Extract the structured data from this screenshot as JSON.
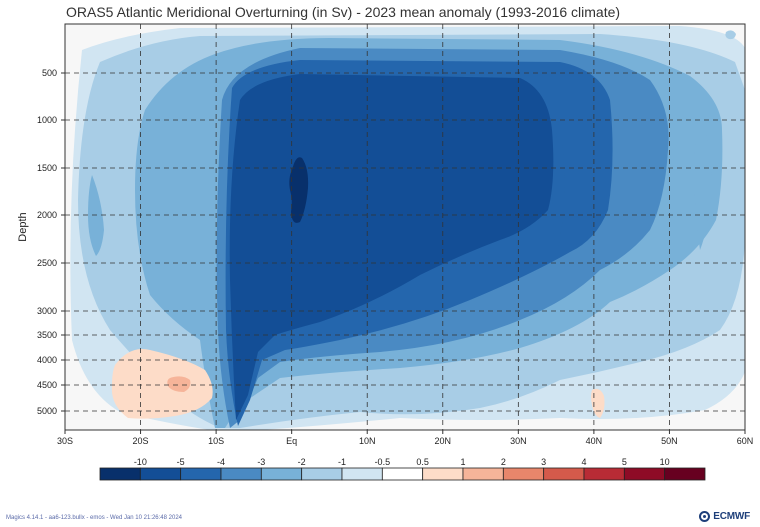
{
  "chart_data": {
    "type": "heatmap",
    "title": "ORAS5 Atlantic Meridional Overturning (in Sv) - 2023 mean anomaly (1993-2016 climate)",
    "ylabel": "Depth",
    "xlabel": "",
    "x_ticks": [
      "30S",
      "20S",
      "10S",
      "Eq",
      "10N",
      "20N",
      "30N",
      "40N",
      "50N",
      "60N"
    ],
    "x_tick_values": [
      -30,
      -20,
      -10,
      0,
      10,
      20,
      30,
      40,
      50,
      60
    ],
    "xlim": [
      -30,
      60
    ],
    "y_ticks": [
      "500",
      "1000",
      "1500",
      "2000",
      "2500",
      "3000",
      "3500",
      "4000",
      "4500",
      "5000"
    ],
    "y_tick_values": [
      500,
      1000,
      1500,
      2000,
      2500,
      3000,
      3500,
      4000,
      4500,
      5000
    ],
    "ylim": [
      0,
      5300
    ],
    "y_inverted": true,
    "grid": true,
    "colorbar": {
      "labels": [
        "-10",
        "-5",
        "-4",
        "-3",
        "-2",
        "-1",
        "-0.5",
        "0.5",
        "1",
        "2",
        "3",
        "4",
        "5",
        "10"
      ],
      "colors": [
        "#08306b",
        "#134e96",
        "#2466ad",
        "#4a8ac3",
        "#78b1d8",
        "#a8cde6",
        "#d1e5f2",
        "#ffffff",
        "#fddcc8",
        "#f6b499",
        "#e8866b",
        "#d45a4b",
        "#b82b35",
        "#8e0b26",
        "#670020"
      ]
    },
    "anomaly_regions": [
      {
        "level": "-1",
        "lat": [
          -26,
          57
        ],
        "depth": [
          60,
          4900
        ]
      },
      {
        "level": "-2",
        "lat": [
          -24,
          52
        ],
        "depth": [
          260,
          4150
        ]
      },
      {
        "level": "-3",
        "lat": [
          -11,
          44
        ],
        "depth": [
          500,
          3800
        ]
      },
      {
        "level": "-4",
        "lat": [
          -9,
          33
        ],
        "depth": [
          650,
          3520
        ]
      },
      {
        "level": "-5",
        "lat": [
          -8.5,
          31
        ],
        "depth": [
          900,
          3350
        ]
      },
      {
        "level": "-10",
        "lat": [
          -0.2,
          1.8
        ],
        "depth": [
          1400,
          2100
        ]
      },
      {
        "level": "0.5",
        "lat": [
          -27,
          -17
        ],
        "depth": [
          3850,
          5150
        ]
      },
      {
        "level": "1",
        "lat": [
          -16,
          -13
        ],
        "depth": [
          4350,
          4650
        ]
      },
      {
        "level": "0.5",
        "lat": [
          39.5,
          41.5
        ],
        "depth": [
          4600,
          5150
        ]
      }
    ]
  },
  "footer": {
    "credit": "Magics 4.14.1 - aa6-123.bullx - emos - Wed Jan 10 21:26:48 2024",
    "logo": "ECMWF"
  }
}
